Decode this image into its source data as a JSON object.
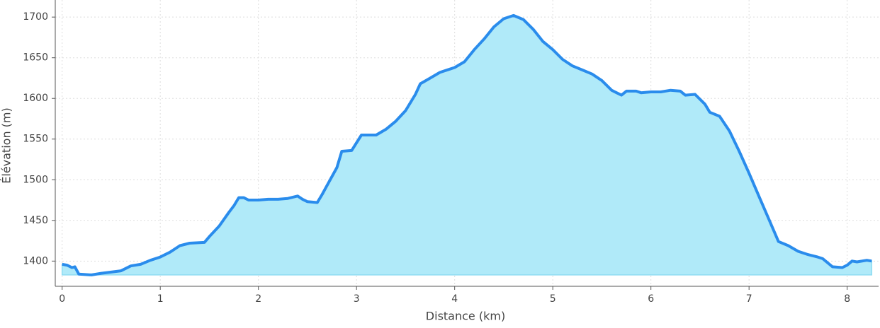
{
  "chart_data": {
    "type": "area",
    "x_label": "Distance (km)",
    "y_label": "Élévation (m)",
    "x": [
      0,
      0.05,
      0.1,
      0.13,
      0.17,
      0.3,
      0.4,
      0.6,
      0.7,
      0.8,
      0.9,
      1.0,
      1.1,
      1.2,
      1.3,
      1.45,
      1.5,
      1.6,
      1.7,
      1.75,
      1.8,
      1.85,
      1.9,
      2.0,
      2.1,
      2.2,
      2.3,
      2.4,
      2.45,
      2.5,
      2.6,
      2.65,
      2.7,
      2.8,
      2.85,
      2.95,
      3.05,
      3.2,
      3.3,
      3.4,
      3.5,
      3.6,
      3.65,
      3.75,
      3.85,
      4.0,
      4.1,
      4.2,
      4.3,
      4.4,
      4.5,
      4.6,
      4.7,
      4.8,
      4.9,
      5.0,
      5.1,
      5.2,
      5.3,
      5.4,
      5.5,
      5.6,
      5.65,
      5.7,
      5.75,
      5.85,
      5.9,
      6.0,
      6.1,
      6.2,
      6.3,
      6.35,
      6.45,
      6.55,
      6.6,
      6.7,
      6.8,
      6.9,
      7.0,
      7.1,
      7.2,
      7.3,
      7.4,
      7.5,
      7.6,
      7.7,
      7.75,
      7.85,
      7.95,
      8.0,
      8.05,
      8.1,
      8.2,
      8.25
    ],
    "y": [
      1396,
      1395,
      1392,
      1393,
      1384,
      1383,
      1385,
      1388,
      1394,
      1396,
      1401,
      1405,
      1411,
      1419,
      1422,
      1423,
      1430,
      1443,
      1460,
      1468,
      1478,
      1478,
      1475,
      1475,
      1476,
      1476,
      1477,
      1480,
      1476,
      1473,
      1472,
      1482,
      1493,
      1515,
      1535,
      1536,
      1555,
      1555,
      1562,
      1572,
      1585,
      1605,
      1618,
      1625,
      1632,
      1638,
      1645,
      1660,
      1673,
      1688,
      1698,
      1702,
      1697,
      1685,
      1670,
      1660,
      1648,
      1640,
      1635,
      1630,
      1622,
      1610,
      1607,
      1604,
      1609,
      1609,
      1607,
      1608,
      1608,
      1610,
      1609,
      1604,
      1605,
      1593,
      1583,
      1578,
      1560,
      1535,
      1508,
      1480,
      1452,
      1424,
      1419,
      1412,
      1408,
      1405,
      1403,
      1393,
      1392,
      1395,
      1400,
      1399,
      1401,
      1400
    ],
    "color": "#2a8cec",
    "fill_color": "#b0eaf9",
    "xlim": [
      -0.07,
      8.32
    ],
    "ylim": [
      1369,
      1721
    ],
    "xticks": [
      0,
      1,
      2,
      3,
      4,
      5,
      6,
      7,
      8
    ],
    "yticks": [
      1400,
      1450,
      1500,
      1550,
      1600,
      1650,
      1700
    ],
    "grid": true
  }
}
